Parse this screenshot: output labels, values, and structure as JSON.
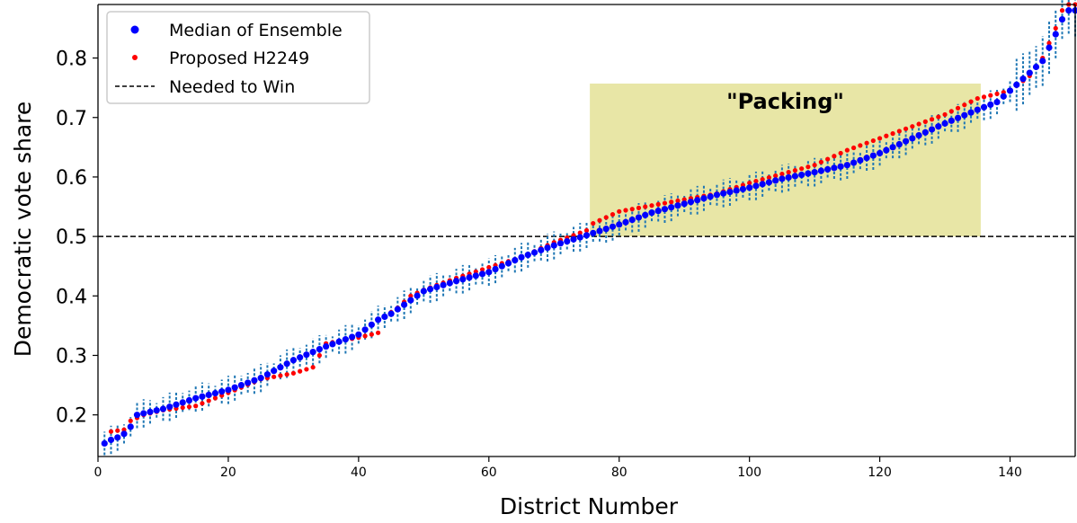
{
  "chart_data": {
    "type": "scatter",
    "xlabel": "District Number",
    "ylabel": "Democratic vote share",
    "xlim": [
      0,
      150
    ],
    "ylim": [
      0.13,
      0.89
    ],
    "xticks": [
      "0",
      "20",
      "40",
      "60",
      "80",
      "100",
      "120",
      "140"
    ],
    "yticks": [
      "0.2",
      "0.3",
      "0.4",
      "0.5",
      "0.6",
      "0.7",
      "0.8"
    ],
    "grid": false,
    "legend_position": "top-left",
    "legend": [
      "Median of Ensemble",
      "Proposed H2249",
      "Needed to Win"
    ],
    "threshold": 0.5,
    "annotation": {
      "text": "\"Packing\"",
      "x_range": [
        75.5,
        135.5
      ],
      "y_range": [
        0.5,
        0.757
      ],
      "color": "#e8e6a6"
    },
    "colors": {
      "median": "#0000ff",
      "proposed": "#ff0000",
      "errorbar": "#1f77b4",
      "threshold": "#000000"
    },
    "median_keypoints": [
      [
        1,
        0.152
      ],
      [
        2,
        0.158
      ],
      [
        3,
        0.162
      ],
      [
        4,
        0.168
      ],
      [
        5,
        0.18
      ],
      [
        6,
        0.2
      ],
      [
        10,
        0.21
      ],
      [
        15,
        0.228
      ],
      [
        20,
        0.242
      ],
      [
        25,
        0.262
      ],
      [
        30,
        0.292
      ],
      [
        35,
        0.315
      ],
      [
        40,
        0.335
      ],
      [
        43,
        0.36
      ],
      [
        45,
        0.37
      ],
      [
        50,
        0.408
      ],
      [
        55,
        0.425
      ],
      [
        60,
        0.44
      ],
      [
        65,
        0.465
      ],
      [
        70,
        0.485
      ],
      [
        75,
        0.502
      ],
      [
        80,
        0.52
      ],
      [
        85,
        0.54
      ],
      [
        90,
        0.555
      ],
      [
        95,
        0.57
      ],
      [
        100,
        0.582
      ],
      [
        105,
        0.597
      ],
      [
        110,
        0.608
      ],
      [
        115,
        0.62
      ],
      [
        120,
        0.64
      ],
      [
        125,
        0.665
      ],
      [
        130,
        0.69
      ],
      [
        135,
        0.713
      ],
      [
        138,
        0.726
      ],
      [
        140,
        0.745
      ],
      [
        143,
        0.775
      ],
      [
        145,
        0.795
      ],
      [
        147,
        0.84
      ],
      [
        148,
        0.865
      ],
      [
        149,
        0.88
      ]
    ],
    "proposed_keypoints": [
      [
        1,
        0.152
      ],
      [
        2,
        0.172
      ],
      [
        4,
        0.175
      ],
      [
        5,
        0.19
      ],
      [
        7,
        0.2
      ],
      [
        10,
        0.208
      ],
      [
        15,
        0.215
      ],
      [
        20,
        0.237
      ],
      [
        25,
        0.26
      ],
      [
        30,
        0.27
      ],
      [
        33,
        0.28
      ],
      [
        35,
        0.32
      ],
      [
        40,
        0.33
      ],
      [
        43,
        0.338
      ],
      [
        44,
        0.365
      ],
      [
        46,
        0.38
      ],
      [
        48,
        0.4
      ],
      [
        50,
        0.41
      ],
      [
        55,
        0.43
      ],
      [
        60,
        0.448
      ],
      [
        65,
        0.465
      ],
      [
        70,
        0.49
      ],
      [
        75,
        0.51
      ],
      [
        76,
        0.522
      ],
      [
        80,
        0.542
      ],
      [
        85,
        0.552
      ],
      [
        90,
        0.562
      ],
      [
        95,
        0.572
      ],
      [
        100,
        0.59
      ],
      [
        105,
        0.605
      ],
      [
        110,
        0.62
      ],
      [
        115,
        0.645
      ],
      [
        120,
        0.665
      ],
      [
        125,
        0.685
      ],
      [
        130,
        0.705
      ],
      [
        135,
        0.732
      ],
      [
        140,
        0.745
      ],
      [
        143,
        0.77
      ],
      [
        145,
        0.8
      ],
      [
        147,
        0.85
      ],
      [
        148,
        0.88
      ],
      [
        149,
        0.89
      ]
    ]
  }
}
